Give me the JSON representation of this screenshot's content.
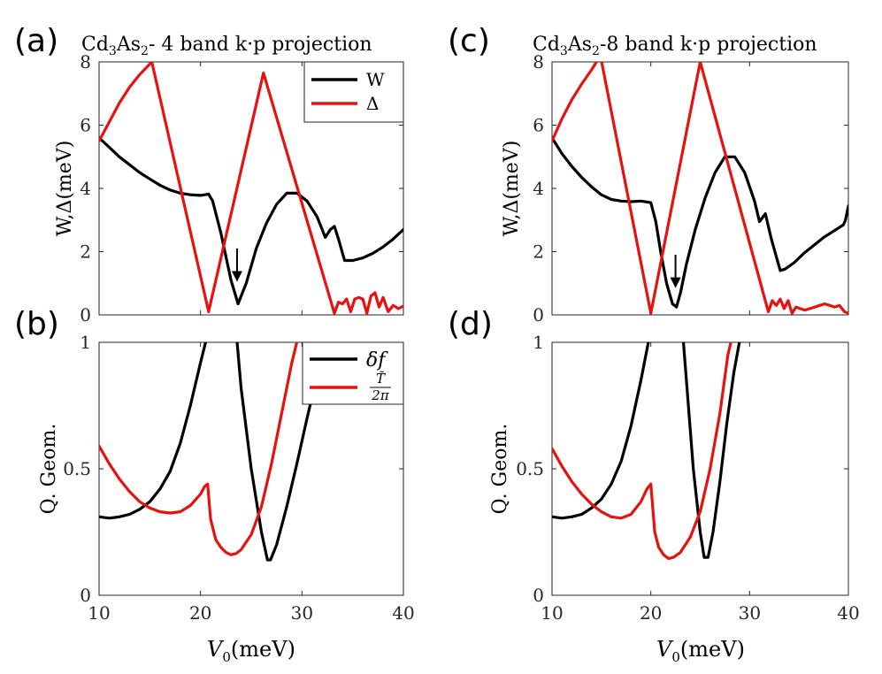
{
  "figure": {
    "colors": {
      "W": "#000000",
      "Delta": "#e6120f",
      "axis": "#262626"
    }
  },
  "chart_data": [
    {
      "type": "line",
      "panel_label": "(a)",
      "title": "Cd3As2- 4 band k·p projection",
      "title_parts": {
        "base": "Cd",
        "sub1": "3",
        "mid": "As",
        "sub2": "2",
        "rest": "- 4 band k·p projection"
      },
      "xlabel": "",
      "ylabel": "W,Δ(meV)",
      "xlim": [
        10,
        40
      ],
      "ylim": [
        0,
        8
      ],
      "xticks": [
        10,
        20,
        30,
        40
      ],
      "xtick_labels_visible": false,
      "yticks": [
        0,
        2,
        4,
        6,
        8
      ],
      "ytick_labels": [
        "0",
        "2",
        "4",
        "6",
        "8"
      ],
      "legend": {
        "position": "top-right",
        "entries": [
          "W",
          "Δ"
        ]
      },
      "annotation": {
        "type": "arrow",
        "x": 23.6,
        "y_from": 2.1,
        "y_to": 1.05
      },
      "series": [
        {
          "name": "W",
          "color": "#000000",
          "x": [
            10,
            11,
            12,
            13,
            14,
            15,
            16,
            17,
            18,
            19,
            20,
            20.8,
            21.2,
            22,
            23,
            23.7,
            24.5,
            25.5,
            26.5,
            27.5,
            28.5,
            29.5,
            30.5,
            31.5,
            32.3,
            32.8,
            33.2,
            33.6,
            34.2,
            35,
            36,
            37,
            38,
            39,
            40
          ],
          "y": [
            5.6,
            5.3,
            5.0,
            4.75,
            4.5,
            4.3,
            4.1,
            3.95,
            3.85,
            3.8,
            3.78,
            3.82,
            3.6,
            2.6,
            1.1,
            0.35,
            1.0,
            2.1,
            2.9,
            3.5,
            3.85,
            3.85,
            3.6,
            3.1,
            2.45,
            2.7,
            2.8,
            2.4,
            1.72,
            1.72,
            1.8,
            1.95,
            2.15,
            2.4,
            2.7
          ]
        },
        {
          "name": "Δ",
          "color": "#e6120f",
          "x": [
            10,
            11,
            12,
            13,
            14,
            15.2,
            20.8,
            26.2,
            33.2,
            33.6,
            34,
            34.4,
            34.8,
            35.2,
            35.6,
            36,
            36.4,
            36.8,
            37.2,
            37.6,
            38,
            38.5,
            39,
            39.5,
            40
          ],
          "y": [
            5.5,
            6.1,
            6.7,
            7.2,
            7.6,
            8.0,
            0.1,
            7.65,
            0.05,
            0.4,
            0.35,
            0.5,
            0.1,
            0.5,
            0.55,
            0.5,
            0.05,
            0.6,
            0.7,
            0.25,
            0.55,
            0.1,
            0.3,
            0.2,
            0.28
          ]
        }
      ]
    },
    {
      "type": "line",
      "panel_label": "(c)",
      "title": "Cd3As2-8 band k·p projection",
      "title_parts": {
        "base": "Cd",
        "sub1": "3",
        "mid": "As",
        "sub2": "2",
        "rest": "-8 band k·p projection"
      },
      "xlabel": "",
      "ylabel": "W,Δ(meV)",
      "xlim": [
        10,
        40
      ],
      "ylim": [
        0,
        8
      ],
      "xticks": [
        10,
        20,
        30,
        40
      ],
      "xtick_labels_visible": false,
      "yticks": [
        0,
        2,
        4,
        6,
        8
      ],
      "ytick_labels": [
        "0",
        "2",
        "4",
        "6",
        "8"
      ],
      "annotation": {
        "type": "arrow",
        "x": 22.5,
        "y_from": 1.9,
        "y_to": 0.85
      },
      "series": [
        {
          "name": "W",
          "color": "#000000",
          "x": [
            10,
            11,
            12,
            13,
            14,
            15,
            16,
            17,
            18,
            19,
            20,
            20.5,
            21,
            21.6,
            22.2,
            22.6,
            23,
            23.6,
            24.5,
            25.5,
            26.5,
            27.5,
            28.5,
            29.5,
            30.5,
            31,
            31.6,
            32.2,
            33.1,
            33.6,
            34.5,
            35.5,
            36.5,
            37.5,
            38.5,
            39.5,
            39.7,
            40
          ],
          "y": [
            5.6,
            5.1,
            4.7,
            4.35,
            4.05,
            3.8,
            3.65,
            3.6,
            3.58,
            3.6,
            3.55,
            2.95,
            2.0,
            1.0,
            0.35,
            0.25,
            0.7,
            1.6,
            2.7,
            3.7,
            4.5,
            5.0,
            5.0,
            4.5,
            3.6,
            2.95,
            3.2,
            2.4,
            1.4,
            1.45,
            1.65,
            1.95,
            2.2,
            2.45,
            2.65,
            2.85,
            3.0,
            3.45
          ]
        },
        {
          "name": "Δ",
          "color": "#e6120f",
          "x": [
            10,
            11,
            12,
            13,
            14,
            14.9,
            20,
            25,
            31.9,
            32.3,
            32.7,
            33.1,
            33.5,
            33.9,
            34.3,
            34.7,
            35.1,
            35.6,
            36.1,
            36.6,
            37.1,
            37.6,
            38.1,
            38.6,
            39.1,
            39.6,
            40
          ],
          "y": [
            5.5,
            6.2,
            6.8,
            7.3,
            7.75,
            8.2,
            0.05,
            8.0,
            0.1,
            0.45,
            0.3,
            0.5,
            0.2,
            0.45,
            0.05,
            0.25,
            0.2,
            0.15,
            0.2,
            0.25,
            0.3,
            0.35,
            0.3,
            0.25,
            0.3,
            0.1,
            0.05
          ]
        }
      ]
    },
    {
      "type": "line",
      "panel_label": "(b)",
      "title": "",
      "xlabel": "V0(meV)",
      "xlabel_parts": {
        "base": "V",
        "sub": "0",
        "rest": "(meV)"
      },
      "ylabel": "Q. Geom.",
      "xlim": [
        10,
        40
      ],
      "ylim": [
        0,
        1
      ],
      "xticks": [
        10,
        20,
        30,
        40
      ],
      "xtick_labels": [
        "10",
        "20",
        "30",
        "40"
      ],
      "yticks": [
        0,
        0.5,
        1
      ],
      "ytick_labels": [
        "0",
        "0.5",
        "1"
      ],
      "legend": {
        "position": "top-right",
        "entries": [
          "δf",
          "T̃/2π"
        ],
        "entry_parts": [
          {
            "text": "δf"
          },
          {
            "numer": "T̃",
            "denom": "2π"
          }
        ]
      },
      "series": [
        {
          "name": "δf",
          "color": "#000000",
          "x": [
            10,
            11,
            12,
            13,
            14,
            15,
            16,
            17,
            18,
            19,
            20,
            20.5,
            21,
            21.3,
            23.1,
            23.5,
            24,
            25,
            26,
            26.6,
            26.9,
            27.5,
            28.5,
            29.5,
            30.5,
            31.5,
            32.5,
            33.2
          ],
          "y": [
            0.31,
            0.305,
            0.31,
            0.32,
            0.34,
            0.37,
            0.42,
            0.49,
            0.6,
            0.75,
            0.92,
            1.0,
            1.1,
            1.2,
            1.2,
            1.05,
            0.82,
            0.5,
            0.25,
            0.14,
            0.14,
            0.2,
            0.35,
            0.52,
            0.7,
            0.87,
            1.02,
            1.12
          ]
        },
        {
          "name": "T̃/2π",
          "color": "#e6120f",
          "x": [
            10,
            11,
            12,
            13,
            14,
            15,
            16,
            17,
            18,
            19,
            20,
            20.4,
            20.7,
            21,
            21.5,
            22,
            22.5,
            23,
            23.5,
            24,
            25,
            26,
            27,
            28,
            29,
            29.8
          ],
          "y": [
            0.59,
            0.52,
            0.46,
            0.41,
            0.37,
            0.345,
            0.33,
            0.325,
            0.33,
            0.355,
            0.4,
            0.43,
            0.44,
            0.3,
            0.22,
            0.19,
            0.17,
            0.16,
            0.165,
            0.18,
            0.24,
            0.35,
            0.52,
            0.72,
            0.92,
            1.05
          ]
        }
      ]
    },
    {
      "type": "line",
      "panel_label": "(d)",
      "title": "",
      "xlabel": "V0(meV)",
      "xlabel_parts": {
        "base": "V",
        "sub": "0",
        "rest": "(meV)"
      },
      "ylabel": "Q. Geom.",
      "xlim": [
        10,
        40
      ],
      "ylim": [
        0,
        1
      ],
      "xticks": [
        10,
        20,
        30,
        40
      ],
      "xtick_labels": [
        "10",
        "20",
        "30",
        "40"
      ],
      "yticks": [
        0,
        0.5,
        1
      ],
      "ytick_labels": [
        "0",
        "0.5",
        "1"
      ],
      "series": [
        {
          "name": "δf",
          "color": "#000000",
          "x": [
            10,
            11,
            12,
            13,
            14,
            15,
            16,
            17,
            18,
            19,
            20,
            20.5,
            20.9,
            22.7,
            23.1,
            23.6,
            24.3,
            25,
            25.4,
            25.8,
            26.3,
            27,
            27.7,
            28.4,
            29.2
          ],
          "y": [
            0.31,
            0.305,
            0.31,
            0.32,
            0.345,
            0.38,
            0.44,
            0.53,
            0.67,
            0.85,
            1.05,
            1.15,
            1.25,
            1.25,
            1.1,
            0.85,
            0.5,
            0.25,
            0.15,
            0.15,
            0.25,
            0.45,
            0.68,
            0.88,
            1.05
          ]
        },
        {
          "name": "T̃/2π",
          "color": "#e6120f",
          "x": [
            10,
            11,
            12,
            13,
            14,
            15,
            16,
            17,
            18,
            19,
            19.6,
            20,
            20.4,
            20.8,
            21.3,
            21.8,
            22.3,
            23,
            24,
            25,
            26,
            27,
            27.8,
            28.4
          ],
          "y": [
            0.58,
            0.51,
            0.45,
            0.4,
            0.36,
            0.33,
            0.31,
            0.305,
            0.32,
            0.37,
            0.42,
            0.44,
            0.25,
            0.19,
            0.16,
            0.145,
            0.15,
            0.17,
            0.23,
            0.33,
            0.5,
            0.72,
            0.95,
            1.05
          ]
        }
      ]
    }
  ]
}
